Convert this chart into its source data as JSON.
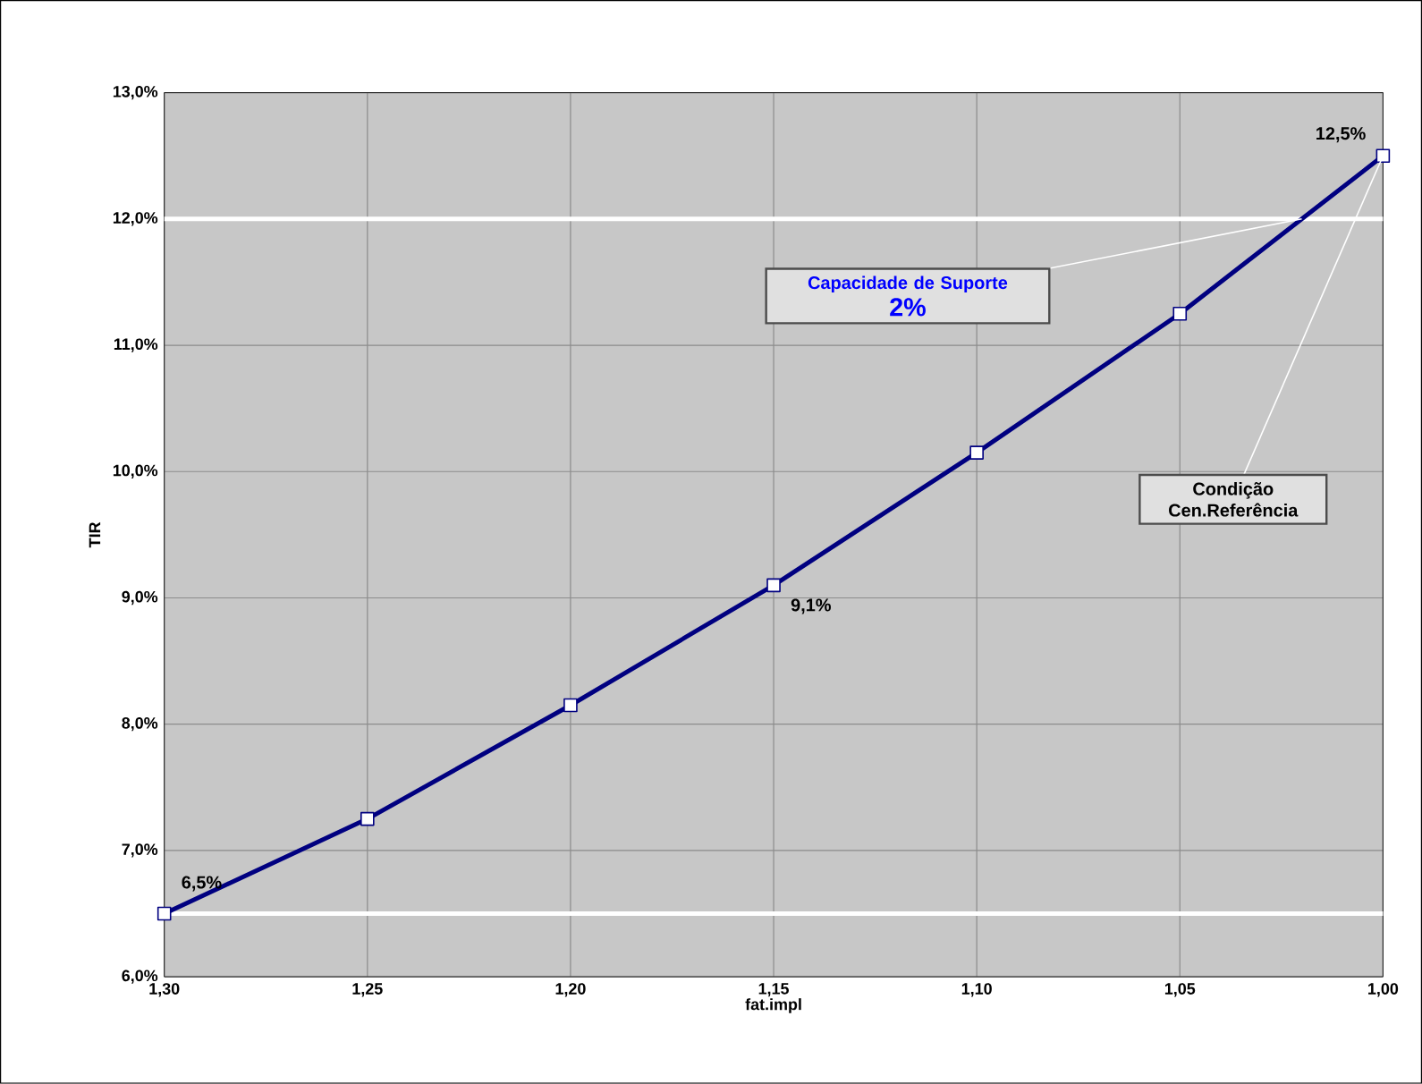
{
  "chart_data": {
    "type": "line",
    "xlabel": "fat.impl",
    "ylabel": "TIR",
    "x": [
      1.3,
      1.25,
      1.2,
      1.15,
      1.1,
      1.05,
      1.0
    ],
    "values": [
      6.5,
      7.25,
      8.15,
      9.1,
      10.15,
      11.25,
      12.5
    ],
    "value_labels": [
      "6,5%",
      null,
      null,
      "9,1%",
      null,
      null,
      "12,5%"
    ],
    "color": "#000080",
    "marker": "square",
    "grid": true,
    "xlim": [
      1.3,
      1.0
    ],
    "xticks": [
      {
        "value": 1.3,
        "label": "1,30"
      },
      {
        "value": 1.25,
        "label": "1,25"
      },
      {
        "value": 1.2,
        "label": "1,20"
      },
      {
        "value": 1.15,
        "label": "1,15"
      },
      {
        "value": 1.1,
        "label": "1,10"
      },
      {
        "value": 1.05,
        "label": "1,05"
      },
      {
        "value": 1.0,
        "label": "1,00"
      }
    ],
    "ylim": [
      6,
      13
    ],
    "yticks": [
      {
        "value": 6,
        "label": "6,0%"
      },
      {
        "value": 7,
        "label": "7,0%"
      },
      {
        "value": 8,
        "label": "8,0%"
      },
      {
        "value": 9,
        "label": "9,0%"
      },
      {
        "value": 10,
        "label": "10,0%"
      },
      {
        "value": 11,
        "label": "11,0%"
      },
      {
        "value": 12,
        "label": "12,0%"
      },
      {
        "value": 13,
        "label": "13,0%"
      }
    ],
    "ref_lines": [
      {
        "axis": "y",
        "value": 12,
        "color": "#ffffff"
      },
      {
        "axis": "y",
        "value": 6.5,
        "color": "#ffffff"
      }
    ],
    "annotations": [
      {
        "text": "Capacidade de Suporte",
        "x": 1.02,
        "y": 12
      },
      "2%",
      {
        "text": "Condição Cen.Referência",
        "x": 1.0,
        "y": 12.5
      }
    ]
  }
}
